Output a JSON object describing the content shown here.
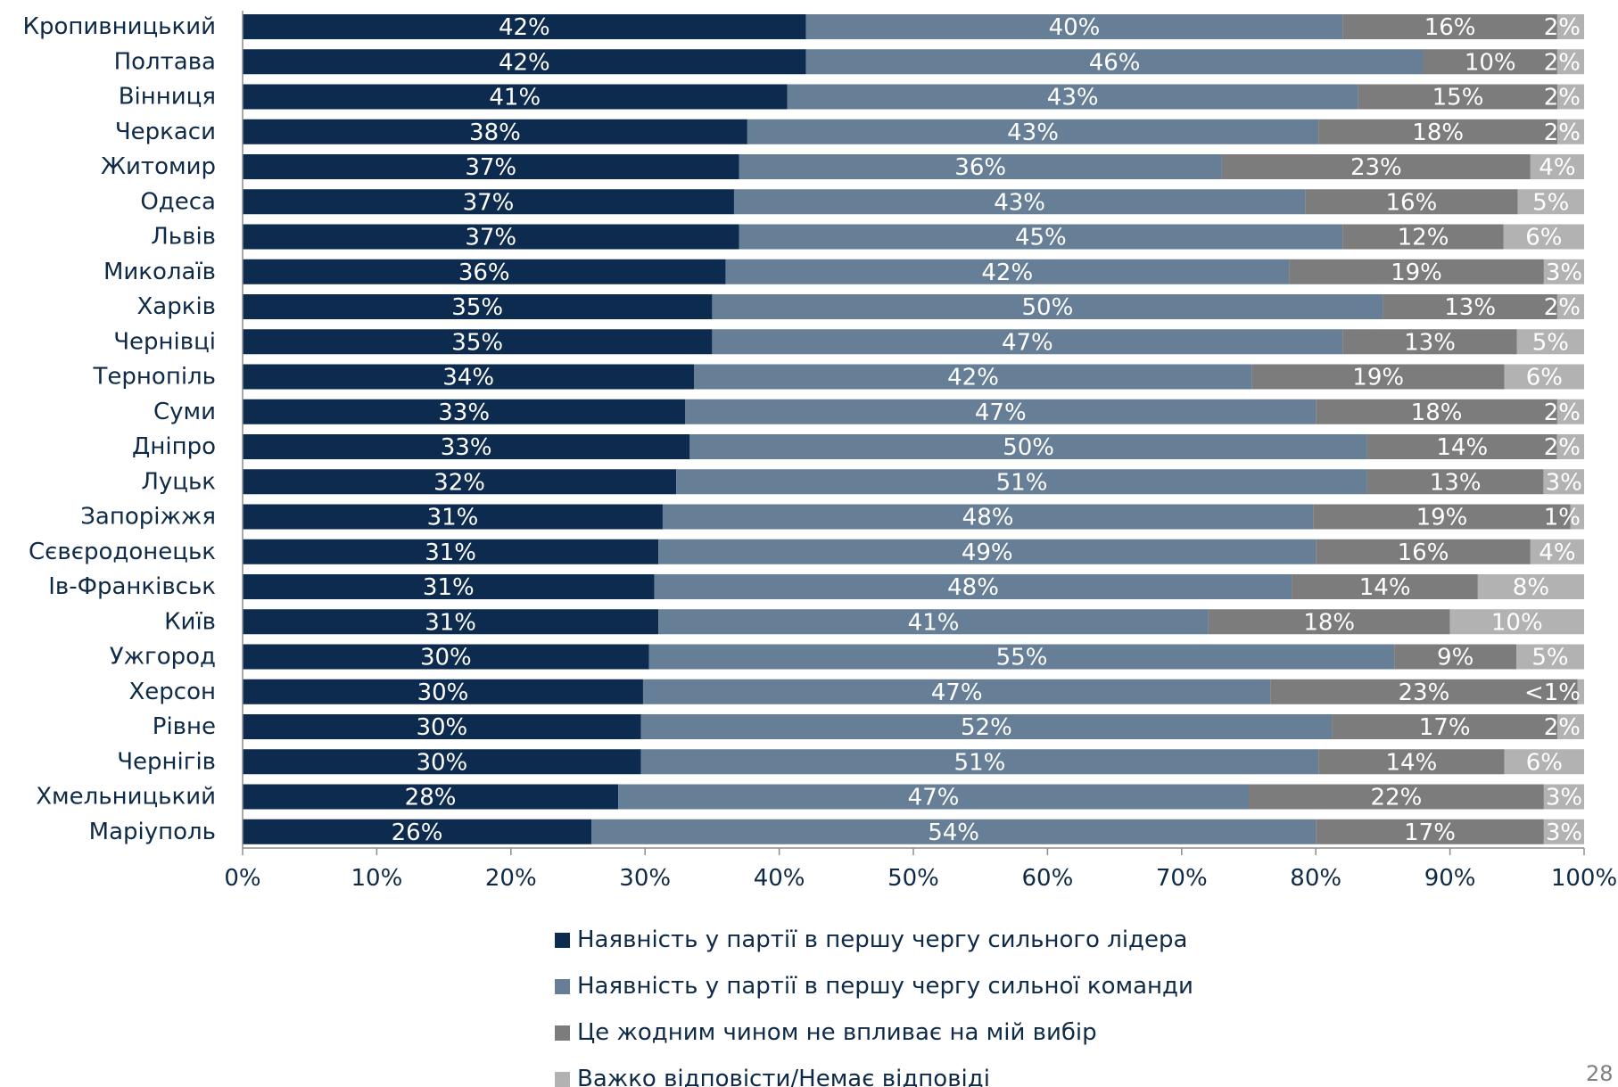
{
  "page_number": "28",
  "chart_data": {
    "type": "bar",
    "orientation": "horizontal",
    "stacked": true,
    "percent_stacked": true,
    "categories": [
      "Кропивницький",
      "Полтава",
      "Вінниця",
      "Черкаси",
      "Житомир",
      "Одеса",
      "Львів",
      "Миколаїв",
      "Харків",
      "Чернівці",
      "Тернопіль",
      "Суми",
      "Дніпро",
      "Луцьк",
      "Запоріжжя",
      "Сєвєродонецьк",
      "Ів-Франківськ",
      "Київ",
      "Ужгород",
      "Херсон",
      "Рівне",
      "Чернігів",
      "Хмельницький",
      "Маріуполь"
    ],
    "series": [
      {
        "name": "Наявність у партії в першу чергу сильного лідера",
        "color": "#0d2a4f",
        "values": [
          42,
          42,
          41,
          38,
          37,
          37,
          37,
          36,
          35,
          35,
          34,
          33,
          33,
          32,
          31,
          31,
          31,
          31,
          30,
          30,
          30,
          30,
          28,
          26
        ],
        "labels": [
          "42%",
          "42%",
          "41%",
          "38%",
          "37%",
          "37%",
          "37%",
          "36%",
          "35%",
          "35%",
          "34%",
          "33%",
          "33%",
          "32%",
          "31%",
          "31%",
          "31%",
          "31%",
          "30%",
          "30%",
          "30%",
          "30%",
          "28%",
          "26%"
        ]
      },
      {
        "name": "Наявність у партії в першу чергу сильної команди",
        "color": "#667f96",
        "values": [
          40,
          46,
          43,
          43,
          36,
          43,
          45,
          42,
          50,
          47,
          42,
          47,
          50,
          51,
          48,
          49,
          48,
          41,
          55,
          47,
          52,
          51,
          47,
          54
        ],
        "labels": [
          "40%",
          "46%",
          "43%",
          "43%",
          "36%",
          "43%",
          "45%",
          "42%",
          "50%",
          "47%",
          "42%",
          "47%",
          "50%",
          "51%",
          "48%",
          "49%",
          "48%",
          "41%",
          "55%",
          "47%",
          "52%",
          "51%",
          "47%",
          "54%"
        ]
      },
      {
        "name": "Це жодним чином не впливає на мій вибір",
        "color": "#7c7c7c",
        "values": [
          16,
          10,
          15,
          18,
          23,
          16,
          12,
          19,
          13,
          13,
          19,
          18,
          14,
          13,
          19,
          16,
          14,
          18,
          9,
          23,
          17,
          14,
          22,
          17
        ],
        "labels": [
          "16%",
          "10%",
          "15%",
          "18%",
          "23%",
          "16%",
          "12%",
          "19%",
          "13%",
          "13%",
          "19%",
          "18%",
          "14%",
          "13%",
          "19%",
          "16%",
          "14%",
          "18%",
          "9%",
          "23%",
          "17%",
          "14%",
          "22%",
          "17%"
        ]
      },
      {
        "name": "Важко відповісти/Немає відповіді",
        "color": "#b2b2b2",
        "values": [
          2,
          2,
          2,
          2,
          4,
          5,
          6,
          3,
          2,
          5,
          6,
          2,
          2,
          3,
          1,
          4,
          8,
          10,
          5,
          0.5,
          2,
          6,
          3,
          3
        ],
        "labels": [
          "2%",
          "2%",
          "2%",
          "2%",
          "4%",
          "5%",
          "6%",
          "3%",
          "2%",
          "5%",
          "6%",
          "2%",
          "2%",
          "3%",
          "1%",
          "4%",
          "8%",
          "10%",
          "5%",
          "<1%",
          "2%",
          "6%",
          "3%",
          "3%"
        ]
      }
    ],
    "xlim": [
      0,
      100
    ],
    "x_ticks": [
      "0%",
      "10%",
      "20%",
      "30%",
      "40%",
      "50%",
      "60%",
      "70%",
      "80%",
      "90%",
      "100%"
    ],
    "grid": false,
    "legend_position": "bottom"
  }
}
